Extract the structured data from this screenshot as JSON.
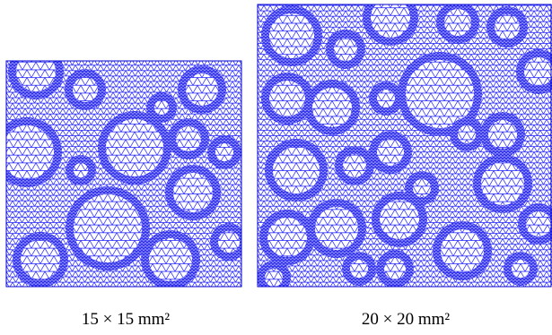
{
  "panels": [
    {
      "caption": "15 × 15 mm²"
    },
    {
      "caption": "20 × 20 mm²"
    }
  ]
}
